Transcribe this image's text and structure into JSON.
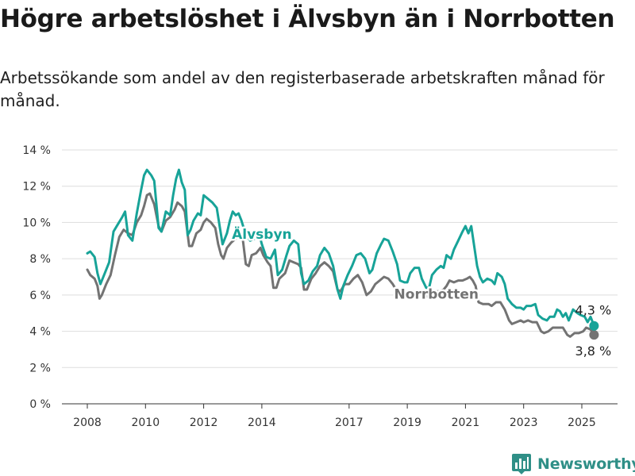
{
  "title": "Högre arbetslöshet i Älvsbyn än i Norrbotten",
  "subtitle": "Arbetssökande som andel av den registerbaserade arbetskraften månad för månad.",
  "logo": {
    "text": "Newsworthy",
    "icon": "bar-chart-logo-icon",
    "color": "#2f8f87"
  },
  "chart_data": {
    "type": "line",
    "x_unit": "year (monthly observations)",
    "ylim": [
      0,
      14
    ],
    "xlim": [
      2007.6,
      2026.2
    ],
    "y_ticks": [
      0,
      2,
      4,
      6,
      8,
      10,
      12,
      14
    ],
    "y_tick_labels": [
      "0 %",
      "2 %",
      "4 %",
      "6 %",
      "8 %",
      "10 %",
      "12 %",
      "14 %"
    ],
    "x_ticks": [
      2008,
      2010,
      2012,
      2014,
      2017,
      2019,
      2021,
      2023,
      2025
    ],
    "x_tick_labels": [
      "2008",
      "2010",
      "2012",
      "2014",
      "2017",
      "2019",
      "2021",
      "2023",
      "2025"
    ],
    "grid": "horizontal",
    "series": [
      {
        "name": "Älvsbyn",
        "color": "#17a398",
        "end_label": "4,3 %",
        "points": [
          [
            2008.0,
            8.3
          ],
          [
            2008.1,
            8.4
          ],
          [
            2008.25,
            8.1
          ],
          [
            2008.35,
            7.2
          ],
          [
            2008.45,
            6.6
          ],
          [
            2008.6,
            7.2
          ],
          [
            2008.75,
            7.8
          ],
          [
            2008.9,
            9.5
          ],
          [
            2009.05,
            9.9
          ],
          [
            2009.2,
            10.3
          ],
          [
            2009.3,
            10.6
          ],
          [
            2009.4,
            9.3
          ],
          [
            2009.55,
            9.0
          ],
          [
            2009.7,
            10.5
          ],
          [
            2009.85,
            11.8
          ],
          [
            2009.95,
            12.6
          ],
          [
            2010.05,
            12.9
          ],
          [
            2010.2,
            12.6
          ],
          [
            2010.3,
            12.3
          ],
          [
            2010.45,
            9.7
          ],
          [
            2010.55,
            9.5
          ],
          [
            2010.7,
            10.6
          ],
          [
            2010.85,
            10.4
          ],
          [
            2010.95,
            11.5
          ],
          [
            2011.05,
            12.4
          ],
          [
            2011.15,
            12.9
          ],
          [
            2011.25,
            12.2
          ],
          [
            2011.35,
            11.8
          ],
          [
            2011.45,
            9.3
          ],
          [
            2011.55,
            9.6
          ],
          [
            2011.65,
            10.1
          ],
          [
            2011.8,
            10.5
          ],
          [
            2011.9,
            10.4
          ],
          [
            2012.0,
            11.5
          ],
          [
            2012.15,
            11.3
          ],
          [
            2012.3,
            11.1
          ],
          [
            2012.45,
            10.8
          ],
          [
            2012.55,
            9.8
          ],
          [
            2012.65,
            8.8
          ],
          [
            2012.8,
            9.4
          ],
          [
            2012.9,
            10.1
          ],
          [
            2013.0,
            10.6
          ],
          [
            2013.1,
            10.4
          ],
          [
            2013.2,
            10.5
          ],
          [
            2013.3,
            10.1
          ],
          [
            2013.45,
            9.3
          ],
          [
            2013.6,
            9.0
          ],
          [
            2013.75,
            9.1
          ],
          [
            2013.9,
            9.4
          ],
          [
            2014.0,
            8.8
          ],
          [
            2014.15,
            8.1
          ],
          [
            2014.3,
            8.0
          ],
          [
            2014.45,
            8.5
          ],
          [
            2014.55,
            7.1
          ],
          [
            2014.7,
            7.4
          ],
          [
            2014.85,
            8.2
          ],
          [
            2014.95,
            8.7
          ],
          [
            2015.1,
            9.0
          ],
          [
            2015.25,
            8.8
          ],
          [
            2015.35,
            7.2
          ],
          [
            2015.45,
            6.6
          ],
          [
            2015.6,
            6.8
          ],
          [
            2015.75,
            7.3
          ],
          [
            2015.9,
            7.6
          ],
          [
            2016.0,
            8.2
          ],
          [
            2016.15,
            8.6
          ],
          [
            2016.3,
            8.3
          ],
          [
            2016.45,
            7.6
          ],
          [
            2016.6,
            6.3
          ],
          [
            2016.7,
            5.8
          ],
          [
            2016.8,
            6.5
          ],
          [
            2016.95,
            7.1
          ],
          [
            2017.1,
            7.6
          ],
          [
            2017.25,
            8.2
          ],
          [
            2017.4,
            8.3
          ],
          [
            2017.55,
            8.0
          ],
          [
            2017.7,
            7.2
          ],
          [
            2017.8,
            7.4
          ],
          [
            2017.95,
            8.3
          ],
          [
            2018.1,
            8.8
          ],
          [
            2018.2,
            9.1
          ],
          [
            2018.35,
            9.0
          ],
          [
            2018.5,
            8.4
          ],
          [
            2018.65,
            7.7
          ],
          [
            2018.75,
            6.8
          ],
          [
            2018.9,
            6.7
          ],
          [
            2019.0,
            6.7
          ],
          [
            2019.1,
            7.2
          ],
          [
            2019.25,
            7.5
          ],
          [
            2019.4,
            7.5
          ],
          [
            2019.5,
            6.9
          ],
          [
            2019.65,
            6.4
          ],
          [
            2019.75,
            6.4
          ],
          [
            2019.85,
            7.1
          ],
          [
            2020.0,
            7.4
          ],
          [
            2020.15,
            7.6
          ],
          [
            2020.25,
            7.5
          ],
          [
            2020.35,
            8.2
          ],
          [
            2020.5,
            8.0
          ],
          [
            2020.6,
            8.5
          ],
          [
            2020.75,
            9.0
          ],
          [
            2020.9,
            9.5
          ],
          [
            2021.0,
            9.8
          ],
          [
            2021.1,
            9.4
          ],
          [
            2021.2,
            9.8
          ],
          [
            2021.3,
            8.7
          ],
          [
            2021.4,
            7.6
          ],
          [
            2021.5,
            7.0
          ],
          [
            2021.6,
            6.7
          ],
          [
            2021.75,
            6.9
          ],
          [
            2021.9,
            6.8
          ],
          [
            2022.0,
            6.6
          ],
          [
            2022.1,
            7.2
          ],
          [
            2022.25,
            7.0
          ],
          [
            2022.35,
            6.6
          ],
          [
            2022.45,
            5.8
          ],
          [
            2022.6,
            5.5
          ],
          [
            2022.75,
            5.3
          ],
          [
            2022.9,
            5.3
          ],
          [
            2023.0,
            5.2
          ],
          [
            2023.1,
            5.4
          ],
          [
            2023.25,
            5.4
          ],
          [
            2023.4,
            5.5
          ],
          [
            2023.5,
            4.9
          ],
          [
            2023.65,
            4.7
          ],
          [
            2023.8,
            4.6
          ],
          [
            2023.9,
            4.8
          ],
          [
            2024.05,
            4.8
          ],
          [
            2024.15,
            5.2
          ],
          [
            2024.25,
            5.1
          ],
          [
            2024.35,
            4.8
          ],
          [
            2024.45,
            5.0
          ],
          [
            2024.55,
            4.6
          ],
          [
            2024.7,
            5.2
          ],
          [
            2024.85,
            5.0
          ],
          [
            2024.95,
            4.9
          ],
          [
            2025.1,
            4.8
          ],
          [
            2025.2,
            4.5
          ],
          [
            2025.3,
            4.8
          ],
          [
            2025.42,
            4.3
          ]
        ]
      },
      {
        "name": "Norrbotten",
        "color": "#737373",
        "end_label": "3,8 %",
        "points": [
          [
            2008.0,
            7.4
          ],
          [
            2008.1,
            7.1
          ],
          [
            2008.25,
            6.9
          ],
          [
            2008.35,
            6.5
          ],
          [
            2008.42,
            5.8
          ],
          [
            2008.5,
            6.0
          ],
          [
            2008.65,
            6.6
          ],
          [
            2008.8,
            7.1
          ],
          [
            2008.95,
            8.2
          ],
          [
            2009.1,
            9.2
          ],
          [
            2009.25,
            9.6
          ],
          [
            2009.4,
            9.4
          ],
          [
            2009.55,
            9.3
          ],
          [
            2009.7,
            10.0
          ],
          [
            2009.85,
            10.4
          ],
          [
            2009.95,
            10.9
          ],
          [
            2010.05,
            11.5
          ],
          [
            2010.15,
            11.6
          ],
          [
            2010.3,
            11.0
          ],
          [
            2010.45,
            9.8
          ],
          [
            2010.55,
            9.5
          ],
          [
            2010.7,
            10.1
          ],
          [
            2010.85,
            10.3
          ],
          [
            2011.0,
            10.7
          ],
          [
            2011.1,
            11.1
          ],
          [
            2011.25,
            10.9
          ],
          [
            2011.35,
            10.6
          ],
          [
            2011.5,
            8.7
          ],
          [
            2011.6,
            8.7
          ],
          [
            2011.75,
            9.4
          ],
          [
            2011.9,
            9.6
          ],
          [
            2012.0,
            10.0
          ],
          [
            2012.1,
            10.2
          ],
          [
            2012.25,
            10.0
          ],
          [
            2012.4,
            9.7
          ],
          [
            2012.5,
            8.8
          ],
          [
            2012.6,
            8.2
          ],
          [
            2012.68,
            8.0
          ],
          [
            2012.8,
            8.6
          ],
          [
            2012.95,
            8.9
          ],
          [
            2013.1,
            9.1
          ],
          [
            2013.25,
            9.5
          ],
          [
            2013.35,
            9.0
          ],
          [
            2013.45,
            7.7
          ],
          [
            2013.55,
            7.6
          ],
          [
            2013.65,
            8.2
          ],
          [
            2013.8,
            8.3
          ],
          [
            2013.95,
            8.6
          ],
          [
            2014.05,
            8.2
          ],
          [
            2014.2,
            7.8
          ],
          [
            2014.3,
            7.6
          ],
          [
            2014.4,
            6.4
          ],
          [
            2014.5,
            6.4
          ],
          [
            2014.6,
            6.9
          ],
          [
            2014.8,
            7.2
          ],
          [
            2014.95,
            7.9
          ],
          [
            2015.1,
            7.8
          ],
          [
            2015.25,
            7.7
          ],
          [
            2015.35,
            7.5
          ],
          [
            2015.45,
            6.3
          ],
          [
            2015.55,
            6.3
          ],
          [
            2015.7,
            6.9
          ],
          [
            2015.85,
            7.2
          ],
          [
            2016.0,
            7.6
          ],
          [
            2016.15,
            7.8
          ],
          [
            2016.3,
            7.6
          ],
          [
            2016.45,
            7.3
          ],
          [
            2016.6,
            6.3
          ],
          [
            2016.7,
            6.2
          ],
          [
            2016.85,
            6.6
          ],
          [
            2017.0,
            6.6
          ],
          [
            2017.15,
            6.9
          ],
          [
            2017.3,
            7.1
          ],
          [
            2017.45,
            6.7
          ],
          [
            2017.6,
            6.0
          ],
          [
            2017.75,
            6.2
          ],
          [
            2017.9,
            6.6
          ],
          [
            2018.05,
            6.8
          ],
          [
            2018.2,
            7.0
          ],
          [
            2018.35,
            6.9
          ],
          [
            2018.5,
            6.6
          ],
          [
            2018.65,
            6.2
          ],
          [
            2018.8,
            5.9
          ],
          [
            2018.95,
            5.9
          ],
          [
            2019.1,
            6.0
          ],
          [
            2019.25,
            6.2
          ],
          [
            2019.4,
            6.2
          ],
          [
            2019.55,
            6.0
          ],
          [
            2019.7,
            5.9
          ],
          [
            2019.85,
            6.0
          ],
          [
            2020.0,
            6.2
          ],
          [
            2020.1,
            6.2
          ],
          [
            2020.25,
            6.3
          ],
          [
            2020.35,
            6.5
          ],
          [
            2020.45,
            6.8
          ],
          [
            2020.6,
            6.7
          ],
          [
            2020.75,
            6.8
          ],
          [
            2020.9,
            6.8
          ],
          [
            2021.05,
            6.9
          ],
          [
            2021.15,
            7.0
          ],
          [
            2021.25,
            6.8
          ],
          [
            2021.35,
            6.5
          ],
          [
            2021.45,
            5.6
          ],
          [
            2021.6,
            5.5
          ],
          [
            2021.8,
            5.5
          ],
          [
            2021.9,
            5.4
          ],
          [
            2022.05,
            5.6
          ],
          [
            2022.2,
            5.6
          ],
          [
            2022.35,
            5.2
          ],
          [
            2022.5,
            4.6
          ],
          [
            2022.6,
            4.4
          ],
          [
            2022.75,
            4.5
          ],
          [
            2022.9,
            4.6
          ],
          [
            2023.0,
            4.5
          ],
          [
            2023.15,
            4.6
          ],
          [
            2023.3,
            4.5
          ],
          [
            2023.45,
            4.5
          ],
          [
            2023.6,
            4.0
          ],
          [
            2023.7,
            3.9
          ],
          [
            2023.85,
            4.0
          ],
          [
            2024.0,
            4.2
          ],
          [
            2024.2,
            4.2
          ],
          [
            2024.35,
            4.2
          ],
          [
            2024.5,
            3.8
          ],
          [
            2024.6,
            3.7
          ],
          [
            2024.75,
            3.9
          ],
          [
            2024.9,
            3.9
          ],
          [
            2025.05,
            4.0
          ],
          [
            2025.15,
            4.2
          ],
          [
            2025.3,
            4.1
          ],
          [
            2025.42,
            3.8
          ]
        ]
      }
    ],
    "series_labels": [
      {
        "name": "Älvsbyn",
        "at": [
          2014.0,
          9.1
        ]
      },
      {
        "name": "Norrbotten",
        "at": [
          2020.0,
          5.8
        ]
      }
    ]
  }
}
